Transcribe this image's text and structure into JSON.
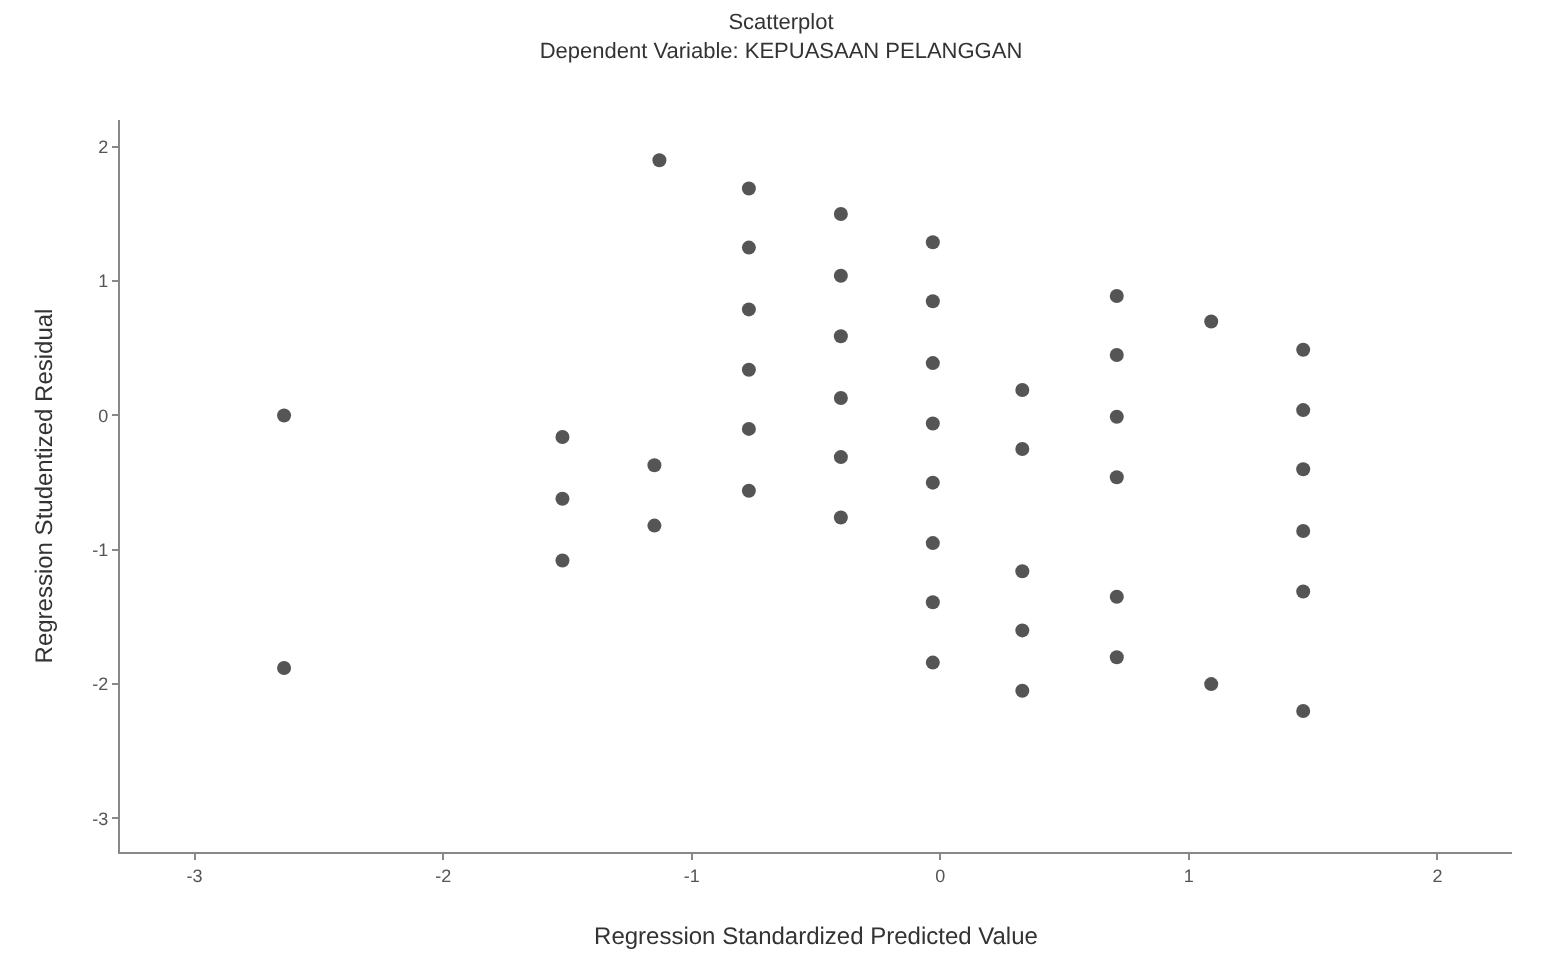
{
  "chart_data": {
    "type": "scatter",
    "title": "Scatterplot",
    "subtitle": "Dependent Variable: KEPUASAAN PELANGGAN",
    "xlabel": "Regression Standardized Predicted Value",
    "ylabel": "Regression Studentized Residual",
    "x": [
      -2.64,
      -2.64,
      -1.52,
      -1.52,
      -1.52,
      -1.15,
      -1.15,
      -1.13,
      -0.77,
      -0.77,
      -0.77,
      -0.77,
      -0.77,
      -0.77,
      -0.4,
      -0.4,
      -0.4,
      -0.4,
      -0.4,
      -0.4,
      -0.03,
      -0.03,
      -0.03,
      -0.03,
      -0.03,
      -0.03,
      -0.03,
      -0.03,
      0.33,
      0.33,
      0.33,
      0.33,
      0.33,
      0.71,
      0.71,
      0.71,
      0.71,
      0.71,
      0.71,
      1.09,
      1.09,
      1.46,
      1.46,
      1.46,
      1.46,
      1.46,
      1.46
    ],
    "values": [
      0.0,
      -1.88,
      -0.16,
      -0.62,
      -1.08,
      -0.37,
      -0.82,
      1.9,
      1.69,
      1.25,
      0.79,
      0.34,
      -0.1,
      -0.56,
      1.5,
      1.04,
      0.59,
      0.13,
      -0.31,
      -0.76,
      1.29,
      0.85,
      0.39,
      -0.06,
      -0.5,
      -0.95,
      -1.39,
      -1.84,
      0.19,
      -0.25,
      -1.16,
      -1.6,
      -2.05,
      0.89,
      0.45,
      -0.01,
      -0.46,
      -1.35,
      -1.8,
      0.7,
      -2.0,
      0.49,
      0.04,
      -0.4,
      -0.86,
      -1.31,
      -2.2
    ],
    "color": "#555555",
    "marker": "circle",
    "grid": false,
    "xlim": [
      -3.3,
      2.3
    ],
    "xticks": [
      -3,
      -2,
      -1,
      0,
      1,
      2
    ],
    "ylim": [
      -3.25,
      2.2
    ],
    "yticks": [
      -3,
      -2,
      -1,
      0,
      1,
      2
    ]
  }
}
